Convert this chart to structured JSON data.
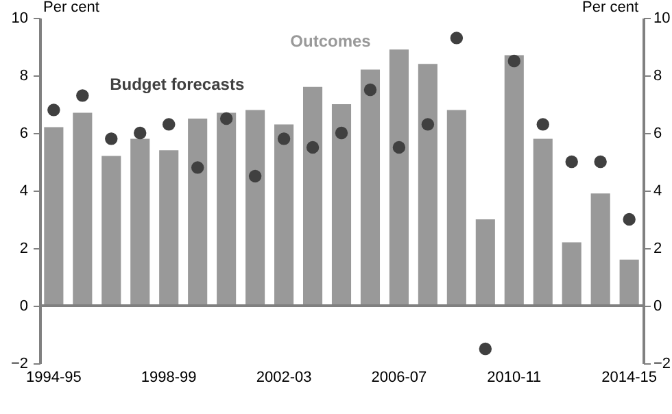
{
  "chart_data": {
    "type": "bar",
    "ylabel": "Per cent",
    "y2label": "Per cent",
    "categories": [
      "1994-95",
      null,
      null,
      null,
      "1998-99",
      null,
      null,
      null,
      "2002-03",
      null,
      null,
      null,
      "2006-07",
      null,
      null,
      null,
      "2010-11",
      null,
      null,
      null,
      "2014-15"
    ],
    "series": [
      {
        "name": "Outcomes",
        "color": "#999999",
        "values": [
          6.2,
          6.7,
          5.2,
          5.8,
          5.4,
          6.5,
          6.7,
          6.8,
          6.3,
          7.6,
          7.0,
          8.2,
          8.9,
          8.4,
          6.8,
          3.0,
          8.7,
          5.8,
          2.2,
          3.9,
          1.6
        ]
      },
      {
        "name": "Budget forecasts",
        "type": "scatter",
        "color": "#404040",
        "marker": "circle",
        "values": [
          6.8,
          7.3,
          5.8,
          6.0,
          6.3,
          4.8,
          6.5,
          4.5,
          5.8,
          5.5,
          6.0,
          7.5,
          5.5,
          6.3,
          9.3,
          -1.5,
          8.5,
          6.3,
          5.0,
          5.0,
          3.0
        ]
      }
    ],
    "ylim": [
      -2,
      10
    ],
    "yticks": [
      -2,
      0,
      2,
      4,
      6,
      8,
      10
    ],
    "y2lim": [
      -2,
      10
    ],
    "y2ticks": [
      -2,
      0,
      2,
      4,
      6,
      8,
      10
    ],
    "ref_lines": [
      {
        "axis": "y",
        "value": 0,
        "color": "#808080"
      }
    ],
    "grid": false
  }
}
